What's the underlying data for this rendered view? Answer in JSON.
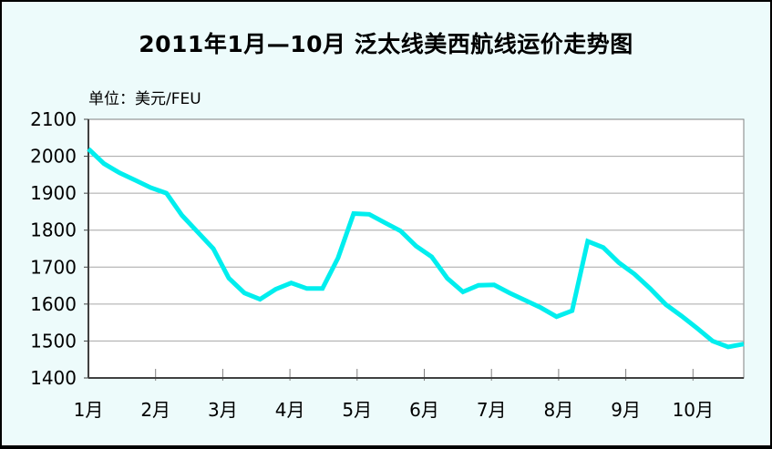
{
  "title": "2011年1月—10月 泛太线美西航线运价走势图",
  "unit_label": "单位：美元/FEU",
  "colors": {
    "background": "#EDFBFB",
    "plot_background": "#FFFFFF",
    "gridline": "#A6A6A6",
    "axis": "#404040",
    "plot_border": "#808080",
    "frame_border": "#141414",
    "line": "#00EEEE",
    "text": "#000000"
  },
  "chart_data": {
    "type": "line",
    "title": "2011年1月—10月 泛太线美西航线运价走势图",
    "ylabel": "单位：美元/FEU",
    "unit": "美元/FEU",
    "x_labels": [
      "1月",
      "2月",
      "3月",
      "4月",
      "5月",
      "6月",
      "7月",
      "8月",
      "9月",
      "10月"
    ],
    "x_note": "weekly data points, evenly spaced from early January to late October 2011",
    "y_ticks": [
      2100,
      2000,
      1900,
      1800,
      1700,
      1600,
      1500,
      1400
    ],
    "ylim": [
      1400,
      2100
    ],
    "grid": "horizontal",
    "legend": "none",
    "line_color": "#00EEEE",
    "values": [
      2020,
      1980,
      1955,
      1935,
      1915,
      1900,
      1840,
      1795,
      1750,
      1670,
      1630,
      1613,
      1640,
      1657,
      1642,
      1642,
      1725,
      1845,
      1843,
      1820,
      1798,
      1757,
      1728,
      1670,
      1633,
      1651,
      1652,
      1630,
      1610,
      1590,
      1566,
      1582,
      1770,
      1753,
      1712,
      1681,
      1642,
      1599,
      1568,
      1535,
      1500,
      1484,
      1492
    ]
  }
}
